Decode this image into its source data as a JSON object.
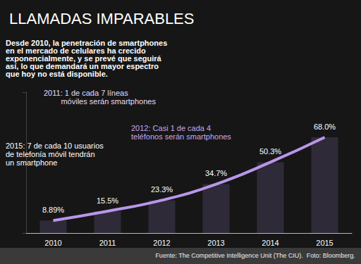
{
  "chart_data": {
    "type": "line",
    "title": "LLAMADAS IMPARABLES",
    "subtitle": "Desde 2010, la penetración de smartphones\nen el mercado de celulares ha crecido\nexponencialmente, y se prevé que seguirá\nasí, lo que demandará un mayor espectro\nque hoy no está disponible.",
    "annotations": [
      {
        "text": "2011: 1 de cada 7 líneas\n        móviles serán smartphones",
        "color": "#e6dcf5"
      },
      {
        "text": "2012: Casi 1 de cada 4\nteléfonos serán smartphones",
        "color": "#c9a8f0"
      },
      {
        "text": "2015: 7 de cada 10 usuarios\nde telefonía móvil tendrán\nun smartphone",
        "color": "#ffffff"
      }
    ],
    "source": "Fuente: The Competitive Intelligence Unit (The CIU).  Foto: Bloomberg.",
    "categories": [
      "2010",
      "2011",
      "2012",
      "2013",
      "2014",
      "2015"
    ],
    "values": [
      8.89,
      15.5,
      23.3,
      34.7,
      50.3,
      68.0
    ],
    "value_labels": [
      "8.89%",
      "15.5%",
      "23.3%",
      "34.7%",
      "50.3%",
      "68.0%"
    ],
    "data_labels": true,
    "color": "#b996ea",
    "ylim": [
      0,
      100
    ],
    "yticks": [
      0,
      100
    ],
    "tick_labels": "x",
    "grid": false
  }
}
